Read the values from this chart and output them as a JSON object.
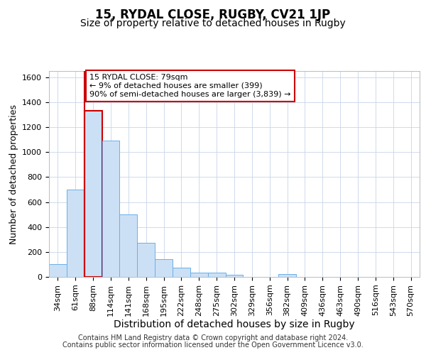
{
  "title": "15, RYDAL CLOSE, RUGBY, CV21 1JP",
  "subtitle": "Size of property relative to detached houses in Rugby",
  "xlabel": "Distribution of detached houses by size in Rugby",
  "ylabel": "Number of detached properties",
  "categories": [
    "34sqm",
    "61sqm",
    "88sqm",
    "114sqm",
    "141sqm",
    "168sqm",
    "195sqm",
    "222sqm",
    "248sqm",
    "275sqm",
    "302sqm",
    "329sqm",
    "356sqm",
    "382sqm",
    "409sqm",
    "436sqm",
    "463sqm",
    "490sqm",
    "516sqm",
    "543sqm",
    "570sqm"
  ],
  "values": [
    100,
    700,
    1330,
    1090,
    500,
    275,
    140,
    75,
    35,
    35,
    15,
    0,
    0,
    20,
    0,
    0,
    0,
    0,
    0,
    0,
    0
  ],
  "bar_color": "#cce0f5",
  "bar_edge_color": "#6aaee8",
  "highlight_bar_edge_color": "#cc0000",
  "vline_color": "#cc0000",
  "vline_index": 2,
  "ylim": [
    0,
    1650
  ],
  "yticks": [
    0,
    200,
    400,
    600,
    800,
    1000,
    1200,
    1400,
    1600
  ],
  "annotation_text": "15 RYDAL CLOSE: 79sqm\n← 9% of detached houses are smaller (399)\n90% of semi-detached houses are larger (3,839) →",
  "annotation_box_facecolor": "#ffffff",
  "annotation_box_edgecolor": "#cc0000",
  "footer_line1": "Contains HM Land Registry data © Crown copyright and database right 2024.",
  "footer_line2": "Contains public sector information licensed under the Open Government Licence v3.0.",
  "background_color": "#ffffff",
  "grid_color": "#c8d4e8",
  "title_fontsize": 12,
  "subtitle_fontsize": 10,
  "ylabel_fontsize": 9,
  "xlabel_fontsize": 10,
  "tick_fontsize": 8,
  "footer_fontsize": 7
}
